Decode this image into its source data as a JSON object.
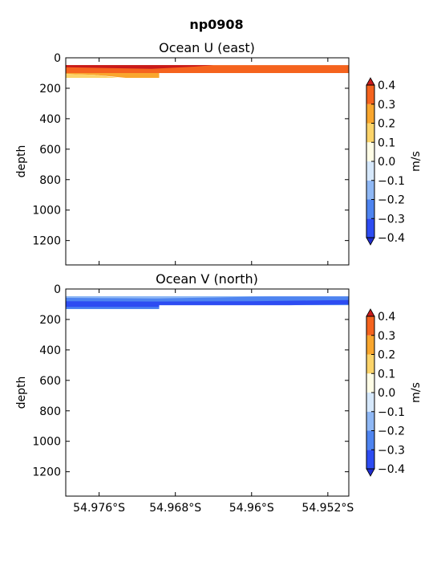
{
  "figure_title": "np0908",
  "colors": {
    "neg_0.4_0.3": "#2d4cf2",
    "neg_0.3_0.2": "#4e84f0",
    "neg_0.2_0.1": "#8fb8f5",
    "neg_0.1_0.0": "#d6e8fb",
    "pos_0.0_0.1": "#fffde6",
    "pos_0.1_0.2": "#fcd46a",
    "pos_0.2_0.3": "#f9a62e",
    "pos_0.3_0.4": "#f5631e",
    "over": "#c81a1a",
    "under": "#1f2ccc"
  },
  "chart_data": [
    {
      "type": "heatmap",
      "title": "Ocean U (east)",
      "ylabel": "depth",
      "y_inverted": true,
      "ylim": [
        1360,
        0
      ],
      "yticks": [
        0,
        200,
        400,
        600,
        800,
        1000,
        1200
      ],
      "xlim": [
        54.9795,
        54.9498
      ],
      "xticks": [
        54.976,
        54.968,
        54.96,
        54.952
      ],
      "xtick_labels": [
        "54.976°S",
        "54.968°S",
        "54.96°S",
        "54.952°S"
      ],
      "colorbar": {
        "label": "m/s",
        "levels": [
          -0.4,
          -0.3,
          -0.2,
          -0.1,
          0.0,
          0.1,
          0.2,
          0.3,
          0.4
        ],
        "tick_labels": [
          "−0.4",
          "−0.3",
          "−0.2",
          "−0.1",
          "0.0",
          "0.1",
          "0.2",
          "0.3",
          "0.4"
        ],
        "extend": "both"
      },
      "regions": [
        {
          "color_key": "pos_0.3_0.4",
          "points": [
            [
              54.9795,
              48
            ],
            [
              54.9498,
              48
            ],
            [
              54.9498,
              100
            ],
            [
              54.9795,
              100
            ]
          ]
        },
        {
          "color_key": "pos_0.2_0.3",
          "points": [
            [
              54.9795,
              100
            ],
            [
              54.9697,
              100
            ],
            [
              54.9697,
              132
            ],
            [
              54.9732,
              132
            ],
            [
              54.9765,
              112
            ],
            [
              54.9795,
              106
            ]
          ]
        },
        {
          "color_key": "pos_0.1_0.2",
          "points": [
            [
              54.9795,
              106
            ],
            [
              54.9765,
              112
            ],
            [
              54.974,
              132
            ],
            [
              54.9795,
              132
            ]
          ]
        },
        {
          "color_key": "pos_0.3_0.4",
          "points": [
            [
              54.9697,
              94
            ],
            [
              54.965,
              100
            ],
            [
              54.9697,
              100
            ]
          ]
        },
        {
          "color_key": "over",
          "points": [
            [
              54.9795,
              48
            ],
            [
              54.964,
              48
            ],
            [
              54.966,
              58
            ],
            [
              54.9705,
              72
            ],
            [
              54.9745,
              68
            ],
            [
              54.9795,
              62
            ]
          ]
        }
      ]
    },
    {
      "type": "heatmap",
      "title": "Ocean V (north)",
      "ylabel": "depth",
      "y_inverted": true,
      "ylim": [
        1360,
        0
      ],
      "yticks": [
        0,
        200,
        400,
        600,
        800,
        1000,
        1200
      ],
      "xlim": [
        54.9795,
        54.9498
      ],
      "xticks": [
        54.976,
        54.968,
        54.96,
        54.952
      ],
      "xtick_labels": [
        "54.976°S",
        "54.968°S",
        "54.96°S",
        "54.952°S"
      ],
      "colorbar": {
        "label": "m/s",
        "levels": [
          -0.4,
          -0.3,
          -0.2,
          -0.1,
          0.0,
          0.1,
          0.2,
          0.3,
          0.4
        ],
        "tick_labels": [
          "−0.4",
          "−0.3",
          "−0.2",
          "−0.1",
          "0.0",
          "0.1",
          "0.2",
          "0.3",
          "0.4"
        ],
        "extend": "both"
      },
      "regions": [
        {
          "color_key": "neg_0.3_0.2",
          "points": [
            [
              54.9795,
              48
            ],
            [
              54.9498,
              48
            ],
            [
              54.9498,
              106
            ],
            [
              54.9697,
              106
            ],
            [
              54.9697,
              132
            ],
            [
              54.9795,
              132
            ]
          ]
        },
        {
          "color_key": "neg_0.2_0.1",
          "points": [
            [
              54.9795,
              48
            ],
            [
              54.958,
              48
            ],
            [
              54.964,
              56
            ],
            [
              54.97,
              62
            ],
            [
              54.975,
              60
            ],
            [
              54.9795,
              58
            ]
          ]
        },
        {
          "color_key": "neg_0.4_0.3",
          "points": [
            [
              54.9795,
              80
            ],
            [
              54.97,
              82
            ],
            [
              54.96,
              80
            ],
            [
              54.954,
              76
            ],
            [
              54.9498,
              72
            ],
            [
              54.9498,
              100
            ],
            [
              54.956,
              106
            ],
            [
              54.9697,
              106
            ],
            [
              54.9697,
              118
            ],
            [
              54.9795,
              118
            ]
          ]
        }
      ]
    }
  ]
}
